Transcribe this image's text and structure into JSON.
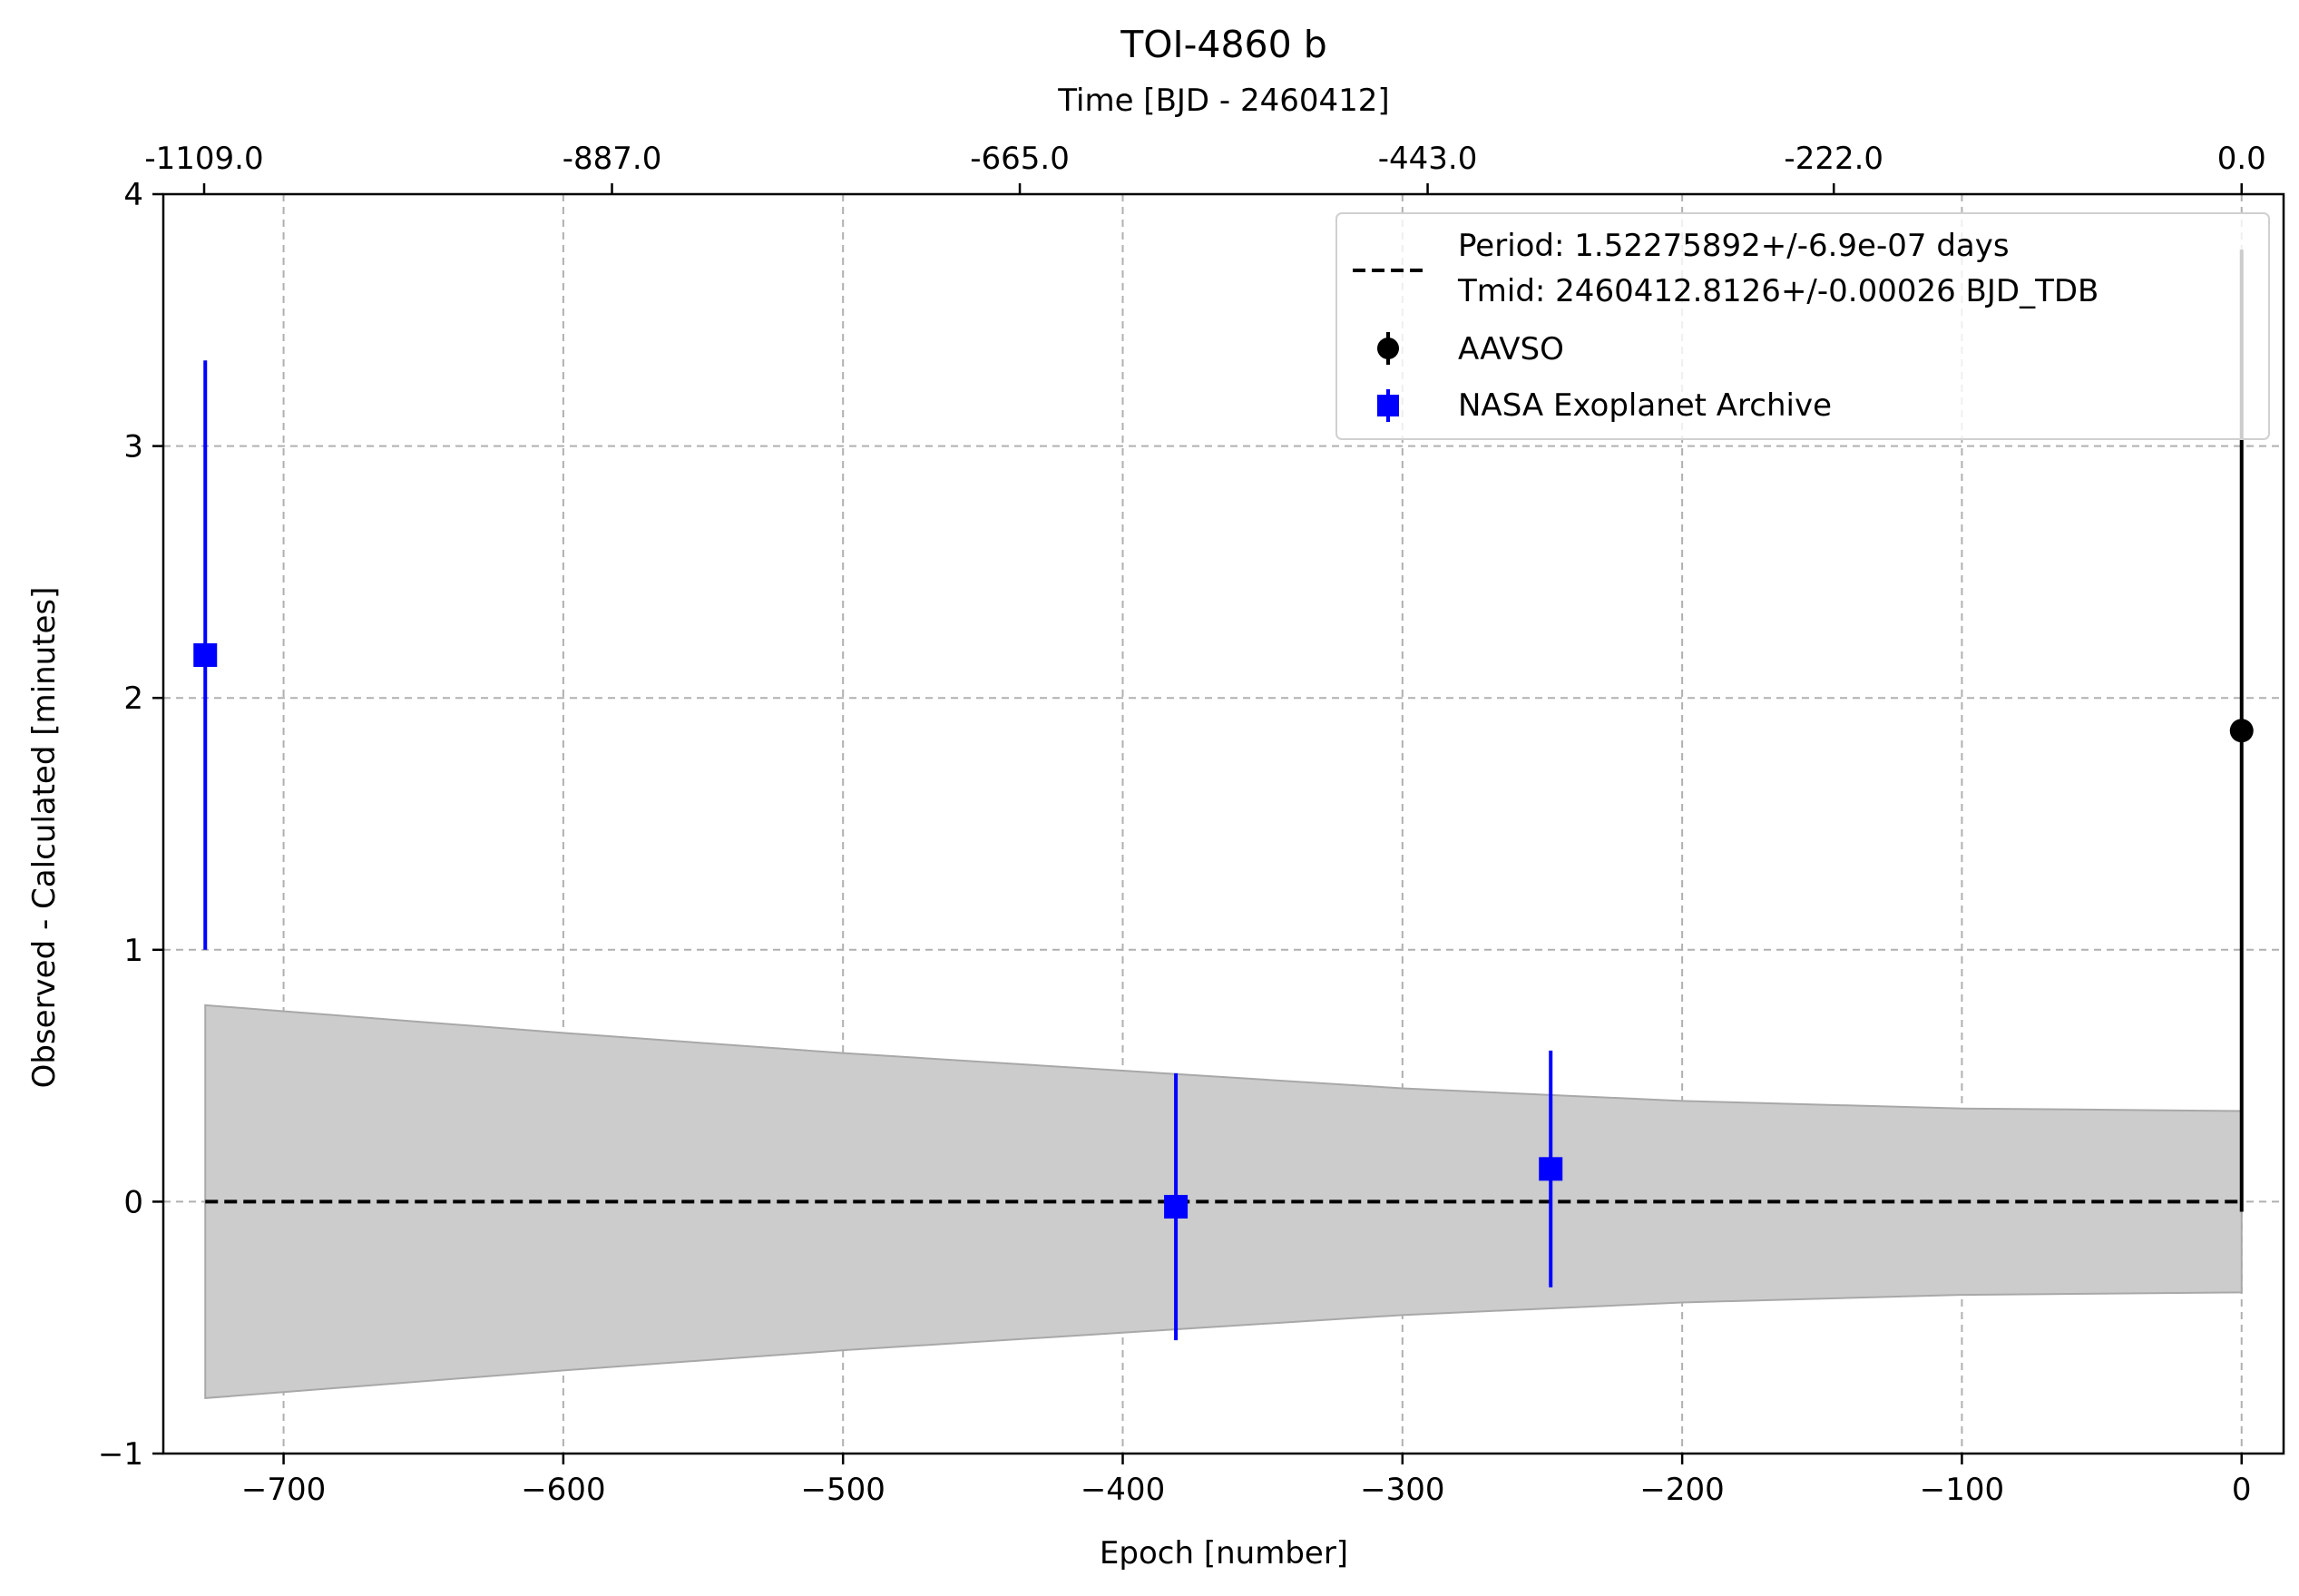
{
  "chart_data": {
    "type": "scatter",
    "title": "TOI-4860 b",
    "xlabel": "Epoch [number]",
    "ylabel": "Observed - Calculated [minutes]",
    "top_xlabel": "Time [BJD - 2460412]",
    "xlim": [
      -743,
      15
    ],
    "ylim": [
      -1,
      4
    ],
    "x_ticks": [
      -700,
      -600,
      -500,
      -400,
      -300,
      -200,
      -100,
      0
    ],
    "x_tick_labels": [
      "−700",
      "−600",
      "−500",
      "−400",
      "−300",
      "−200",
      "−100",
      "0"
    ],
    "y_ticks": [
      -1,
      0,
      1,
      2,
      3,
      4
    ],
    "y_tick_labels": [
      "−1",
      "0",
      "1",
      "2",
      "3",
      "4"
    ],
    "top_x_ticks": [
      -728.4,
      -582.6,
      -436.8,
      -291.0,
      -145.8,
      0
    ],
    "top_x_tick_labels": [
      "-1109.0",
      "-887.0",
      "-665.0",
      "-443.0",
      "-222.0",
      "0.0"
    ],
    "grid": true,
    "legend_position": "top-right",
    "legend": {
      "fit_line_1": "Period: 1.52275892+/-6.9e-07 days",
      "fit_line_2": "Tmid: 2460412.8126+/-0.00026 BJD_TDB",
      "aavso": "AAVSO",
      "nasa": "NASA Exoplanet Archive"
    },
    "fit": {
      "name": "Period: 1.52275892+/-6.9e-07 days Tmid: 2460412.8126+/-0.00026 BJD_TDB",
      "color": "#000000",
      "x": [
        -728,
        0
      ],
      "y": [
        0,
        0
      ]
    },
    "uncertainty_band": {
      "color": "#cccccc",
      "x": [
        -728,
        -600,
        -500,
        -400,
        -300,
        -200,
        -100,
        0
      ],
      "upper": [
        0.78,
        0.67,
        0.59,
        0.52,
        0.45,
        0.4,
        0.37,
        0.36
      ],
      "lower": [
        -0.78,
        -0.67,
        -0.59,
        -0.52,
        -0.45,
        -0.4,
        -0.37,
        -0.36
      ]
    },
    "series": [
      {
        "name": "AAVSO",
        "marker": "circle",
        "color": "#000000",
        "points": [
          {
            "x": 0,
            "y": 1.87,
            "yerr": 1.91
          }
        ]
      },
      {
        "name": "NASA Exoplanet Archive",
        "marker": "square",
        "color": "#0000ff",
        "points": [
          {
            "x": -728,
            "y": 2.17,
            "yerr": 1.17
          },
          {
            "x": -381,
            "y": -0.02,
            "yerr": 0.53
          },
          {
            "x": -247,
            "y": 0.13,
            "yerr": 0.47
          }
        ]
      }
    ]
  }
}
